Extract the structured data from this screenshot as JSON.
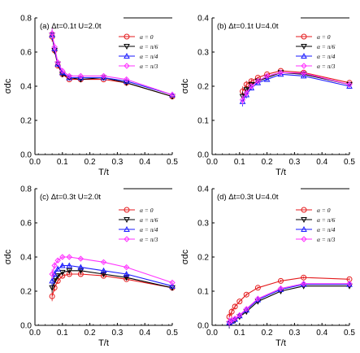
{
  "chart_data": [
    {
      "type": "line",
      "annotation": "(a) Δt=0.1t  U=2.0t",
      "xlabel": "T/t",
      "ylabel": "σdc",
      "xlim": [
        0.0,
        0.5
      ],
      "ylim": [
        0.0,
        0.8
      ],
      "xticks": [
        "0.0",
        "0.1",
        "0.2",
        "0.3",
        "0.4",
        "0.5"
      ],
      "yticks": [
        "0.0",
        "0.2",
        "0.4",
        "0.6",
        "0.8"
      ],
      "legend_position": "top-right",
      "series": [
        {
          "name": "α = 0",
          "color": "#e41a1c",
          "marker": "circle",
          "x": [
            0.0625,
            0.0714,
            0.0833,
            0.1,
            0.125,
            0.1667,
            0.25,
            0.3333,
            0.5
          ],
          "y": [
            0.69,
            0.61,
            0.52,
            0.47,
            0.44,
            0.44,
            0.44,
            0.42,
            0.34
          ]
        },
        {
          "name": "α = π/6",
          "color": "#000000",
          "marker": "triangle-down",
          "x": [
            0.0625,
            0.0714,
            0.0833,
            0.1,
            0.125,
            0.1667,
            0.25,
            0.3333,
            0.5
          ],
          "y": [
            0.7,
            0.61,
            0.53,
            0.47,
            0.45,
            0.44,
            0.45,
            0.42,
            0.34
          ]
        },
        {
          "name": "α = π/4",
          "color": "#1a1aff",
          "marker": "triangle-up",
          "x": [
            0.0625,
            0.0714,
            0.0833,
            0.1,
            0.125,
            0.1667,
            0.25,
            0.3333,
            0.5
          ],
          "y": [
            0.7,
            0.62,
            0.53,
            0.48,
            0.45,
            0.45,
            0.45,
            0.43,
            0.35
          ]
        },
        {
          "name": "α = π/3",
          "color": "#ff33ff",
          "marker": "diamond",
          "x": [
            0.0625,
            0.0714,
            0.0833,
            0.1,
            0.125,
            0.1667,
            0.25,
            0.3333,
            0.5
          ],
          "y": [
            0.71,
            0.63,
            0.54,
            0.49,
            0.46,
            0.46,
            0.46,
            0.44,
            0.35
          ]
        }
      ]
    },
    {
      "type": "line",
      "annotation": "(b)  Δt=0.1t  U=4.0t",
      "xlabel": "T/t",
      "ylabel": "σdc",
      "xlim": [
        0.0,
        0.5
      ],
      "ylim": [
        0.0,
        0.4
      ],
      "xticks": [
        "0.0",
        "0.1",
        "0.2",
        "0.3",
        "0.4",
        "0.5"
      ],
      "yticks": [
        "0.0",
        "0.1",
        "0.2",
        "0.3",
        "0.4"
      ],
      "legend_position": "top-right",
      "series": [
        {
          "name": "α = 0",
          "color": "#e41a1c",
          "marker": "circle",
          "x": [
            0.111,
            0.125,
            0.1429,
            0.1667,
            0.2,
            0.25,
            0.3333,
            0.5
          ],
          "y": [
            0.185,
            0.205,
            0.215,
            0.225,
            0.235,
            0.245,
            0.24,
            0.21
          ]
        },
        {
          "name": "α = π/6",
          "color": "#000000",
          "marker": "triangle-down",
          "x": [
            0.111,
            0.125,
            0.1429,
            0.1667,
            0.2,
            0.25,
            0.3333,
            0.5
          ],
          "y": [
            0.17,
            0.19,
            0.205,
            0.215,
            0.225,
            0.24,
            0.235,
            0.205
          ]
        },
        {
          "name": "α = π/4",
          "color": "#1a1aff",
          "marker": "triangle-up",
          "x": [
            0.111,
            0.125,
            0.1429,
            0.1667,
            0.2,
            0.25,
            0.3333,
            0.5
          ],
          "y": [
            0.155,
            0.175,
            0.195,
            0.21,
            0.22,
            0.235,
            0.23,
            0.2
          ]
        },
        {
          "name": "α = π/3",
          "color": "#ff33ff",
          "marker": "diamond",
          "x": [
            0.111,
            0.125,
            0.1429,
            0.1667,
            0.2,
            0.25,
            0.3333,
            0.5
          ],
          "y": [
            0.16,
            0.18,
            0.2,
            0.215,
            0.23,
            0.24,
            0.238,
            0.205
          ]
        }
      ]
    },
    {
      "type": "line",
      "annotation": "(c) Δt=0.3t  U=2.0t",
      "xlabel": "T/t",
      "ylabel": "σdc",
      "xlim": [
        0.0,
        0.5
      ],
      "ylim": [
        0.0,
        0.8
      ],
      "xticks": [
        "0.0",
        "0.1",
        "0.2",
        "0.3",
        "0.4",
        "0.5"
      ],
      "yticks": [
        "0.0",
        "0.2",
        "0.4",
        "0.6",
        "0.8"
      ],
      "legend_position": "top-right",
      "series": [
        {
          "name": "α = 0",
          "color": "#e41a1c",
          "marker": "circle",
          "x": [
            0.0625,
            0.0714,
            0.0833,
            0.1,
            0.125,
            0.1667,
            0.25,
            0.3333,
            0.5
          ],
          "y": [
            0.17,
            0.22,
            0.26,
            0.29,
            0.3,
            0.3,
            0.29,
            0.27,
            0.22
          ]
        },
        {
          "name": "α = π/6",
          "color": "#000000",
          "marker": "triangle-down",
          "x": [
            0.0625,
            0.0714,
            0.0833,
            0.1,
            0.125,
            0.1667,
            0.25,
            0.3333,
            0.5
          ],
          "y": [
            0.22,
            0.26,
            0.29,
            0.31,
            0.32,
            0.32,
            0.3,
            0.28,
            0.22
          ]
        },
        {
          "name": "α = π/4",
          "color": "#1a1aff",
          "marker": "triangle-up",
          "x": [
            0.0625,
            0.0714,
            0.0833,
            0.1,
            0.125,
            0.1667,
            0.25,
            0.3333,
            0.5
          ],
          "y": [
            0.26,
            0.3,
            0.33,
            0.35,
            0.35,
            0.34,
            0.32,
            0.3,
            0.23
          ]
        },
        {
          "name": "α = π/3",
          "color": "#ff33ff",
          "marker": "diamond",
          "x": [
            0.0625,
            0.0714,
            0.0833,
            0.1,
            0.125,
            0.1667,
            0.25,
            0.3333,
            0.5
          ],
          "y": [
            0.3,
            0.35,
            0.38,
            0.4,
            0.4,
            0.39,
            0.37,
            0.34,
            0.25
          ]
        }
      ]
    },
    {
      "type": "line",
      "annotation": "(d) Δt=0.3t  U=4.0t",
      "xlabel": "T/t",
      "ylabel": "σdc",
      "xlim": [
        0.0,
        0.5
      ],
      "ylim": [
        0.0,
        0.4
      ],
      "xticks": [
        "0.0",
        "0.1",
        "0.2",
        "0.3",
        "0.4",
        "0.5"
      ],
      "yticks": [
        "0.0",
        "0.1",
        "0.2",
        "0.3",
        "0.4"
      ],
      "legend_position": "top-right",
      "series": [
        {
          "name": "α = 0",
          "color": "#e41a1c",
          "marker": "circle",
          "x": [
            0.0625,
            0.0714,
            0.0833,
            0.1,
            0.125,
            0.1667,
            0.25,
            0.3333,
            0.5
          ],
          "y": [
            0.025,
            0.04,
            0.055,
            0.07,
            0.09,
            0.11,
            0.13,
            0.14,
            0.135
          ]
        },
        {
          "name": "α = π/6",
          "color": "#000000",
          "marker": "triangle-down",
          "x": [
            0.0625,
            0.0714,
            0.0833,
            0.1,
            0.125,
            0.1667,
            0.25,
            0.3333,
            0.5
          ],
          "y": [
            0.005,
            0.01,
            0.015,
            0.025,
            0.04,
            0.07,
            0.1,
            0.115,
            0.115
          ]
        },
        {
          "name": "α = π/4",
          "color": "#1a1aff",
          "marker": "triangle-up",
          "x": [
            0.0625,
            0.0714,
            0.0833,
            0.1,
            0.125,
            0.1667,
            0.25,
            0.3333,
            0.5
          ],
          "y": [
            0.008,
            0.012,
            0.018,
            0.028,
            0.045,
            0.075,
            0.105,
            0.12,
            0.12
          ]
        },
        {
          "name": "α = π/3",
          "color": "#ff33ff",
          "marker": "diamond",
          "x": [
            0.0625,
            0.0714,
            0.0833,
            0.1,
            0.125,
            0.1667,
            0.25,
            0.3333,
            0.5
          ],
          "y": [
            0.01,
            0.015,
            0.02,
            0.03,
            0.048,
            0.078,
            0.108,
            0.122,
            0.122
          ]
        }
      ]
    }
  ]
}
